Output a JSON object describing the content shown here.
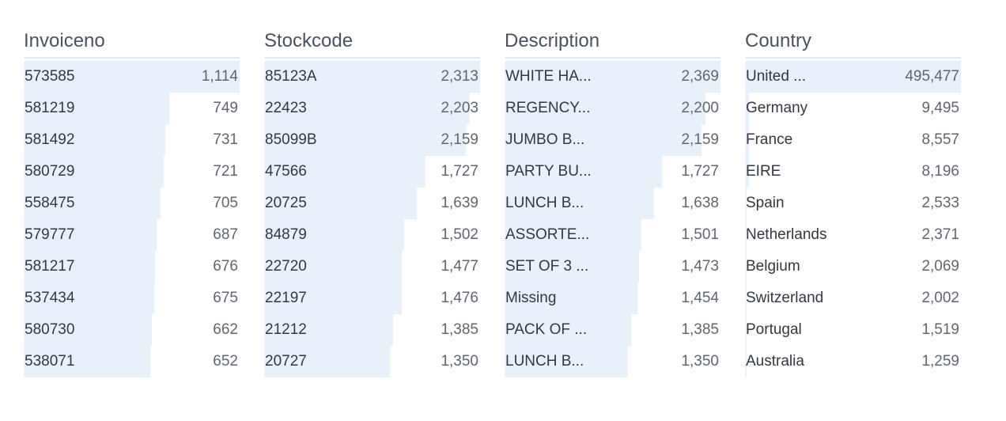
{
  "colors": {
    "background": "#ffffff",
    "bar": "#e8f1fa",
    "label": "#343741",
    "count": "#5f6672",
    "header": "#4a5260",
    "underline": "#e3e7ee"
  },
  "columns": [
    {
      "field": "Invoiceno",
      "rows": [
        {
          "label": "573585",
          "count": "1,114"
        },
        {
          "label": "581219",
          "count": "749"
        },
        {
          "label": "581492",
          "count": "731"
        },
        {
          "label": "580729",
          "count": "721"
        },
        {
          "label": "558475",
          "count": "705"
        },
        {
          "label": "579777",
          "count": "687"
        },
        {
          "label": "581217",
          "count": "676"
        },
        {
          "label": "537434",
          "count": "675"
        },
        {
          "label": "580730",
          "count": "662"
        },
        {
          "label": "538071",
          "count": "652"
        }
      ]
    },
    {
      "field": "Stockcode",
      "rows": [
        {
          "label": "85123A",
          "count": "2,313"
        },
        {
          "label": "22423",
          "count": "2,203"
        },
        {
          "label": "85099B",
          "count": "2,159"
        },
        {
          "label": "47566",
          "count": "1,727"
        },
        {
          "label": "20725",
          "count": "1,639"
        },
        {
          "label": "84879",
          "count": "1,502"
        },
        {
          "label": "22720",
          "count": "1,477"
        },
        {
          "label": "22197",
          "count": "1,476"
        },
        {
          "label": "21212",
          "count": "1,385"
        },
        {
          "label": "20727",
          "count": "1,350"
        }
      ]
    },
    {
      "field": "Description",
      "rows": [
        {
          "label": "WHITE HA...",
          "count": "2,369"
        },
        {
          "label": "REGENCY...",
          "count": "2,200"
        },
        {
          "label": "JUMBO B...",
          "count": "2,159"
        },
        {
          "label": "PARTY BU...",
          "count": "1,727"
        },
        {
          "label": "LUNCH B...",
          "count": "1,638"
        },
        {
          "label": "ASSORTE...",
          "count": "1,501"
        },
        {
          "label": "SET OF 3 ...",
          "count": "1,473"
        },
        {
          "label": "Missing",
          "count": "1,454"
        },
        {
          "label": "PACK OF ...",
          "count": "1,385"
        },
        {
          "label": "LUNCH B...",
          "count": "1,350"
        }
      ]
    },
    {
      "field": "Country",
      "rows": [
        {
          "label": "United ...",
          "count": "495,477"
        },
        {
          "label": "Germany",
          "count": "9,495"
        },
        {
          "label": "France",
          "count": "8,557"
        },
        {
          "label": "EIRE",
          "count": "8,196"
        },
        {
          "label": "Spain",
          "count": "2,533"
        },
        {
          "label": "Netherlands",
          "count": "2,371"
        },
        {
          "label": "Belgium",
          "count": "2,069"
        },
        {
          "label": "Switzerland",
          "count": "2,002"
        },
        {
          "label": "Portugal",
          "count": "1,519"
        },
        {
          "label": "Australia",
          "count": "1,259"
        }
      ]
    }
  ],
  "chart_data": [
    {
      "type": "bar",
      "orientation": "horizontal",
      "title": "Invoiceno",
      "categories": [
        "573585",
        "581219",
        "581492",
        "580729",
        "558475",
        "579777",
        "581217",
        "537434",
        "580730",
        "538071"
      ],
      "values": [
        1114,
        749,
        731,
        721,
        705,
        687,
        676,
        675,
        662,
        652
      ],
      "xlim": [
        0,
        1114
      ],
      "grid": false,
      "legend": false
    },
    {
      "type": "bar",
      "orientation": "horizontal",
      "title": "Stockcode",
      "categories": [
        "85123A",
        "22423",
        "85099B",
        "47566",
        "20725",
        "84879",
        "22720",
        "22197",
        "21212",
        "20727"
      ],
      "values": [
        2313,
        2203,
        2159,
        1727,
        1639,
        1502,
        1477,
        1476,
        1385,
        1350
      ],
      "xlim": [
        0,
        2313
      ],
      "grid": false,
      "legend": false
    },
    {
      "type": "bar",
      "orientation": "horizontal",
      "title": "Description",
      "categories": [
        "WHITE HA...",
        "REGENCY...",
        "JUMBO B...",
        "PARTY BU...",
        "LUNCH B...",
        "ASSORTE...",
        "SET OF 3 ...",
        "Missing",
        "PACK OF ...",
        "LUNCH B..."
      ],
      "values": [
        2369,
        2200,
        2159,
        1727,
        1638,
        1501,
        1473,
        1454,
        1385,
        1350
      ],
      "xlim": [
        0,
        2369
      ],
      "grid": false,
      "legend": false
    },
    {
      "type": "bar",
      "orientation": "horizontal",
      "title": "Country",
      "categories": [
        "United ...",
        "Germany",
        "France",
        "EIRE",
        "Spain",
        "Netherlands",
        "Belgium",
        "Switzerland",
        "Portugal",
        "Australia"
      ],
      "values": [
        495477,
        9495,
        8557,
        8196,
        2533,
        2371,
        2069,
        2002,
        1519,
        1259
      ],
      "xlim": [
        0,
        495477
      ],
      "grid": false,
      "legend": false
    }
  ]
}
